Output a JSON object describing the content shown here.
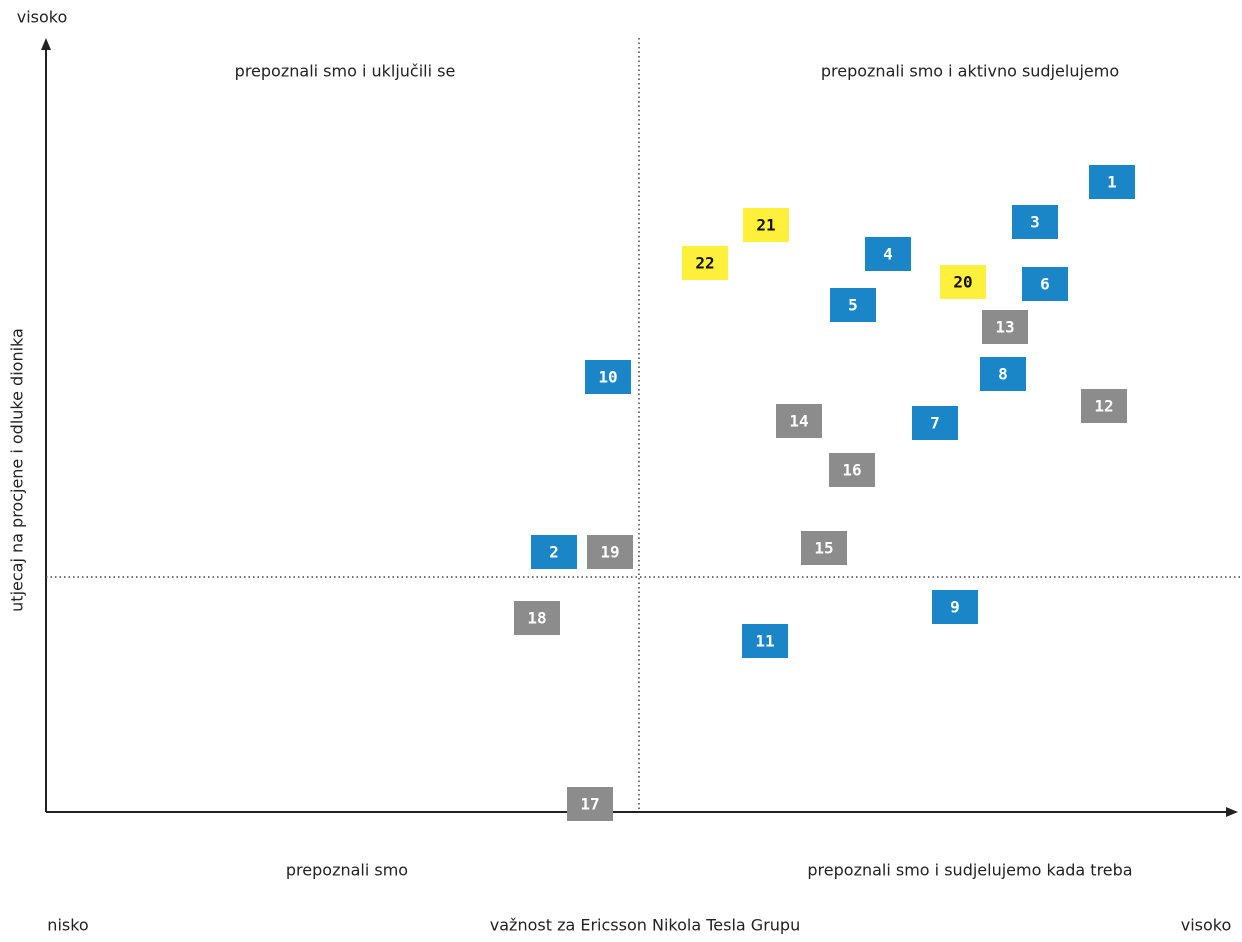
{
  "axes": {
    "y_high": "visoko",
    "y_label": "utjecaj na procjene i odluke dionika",
    "x_low": "nisko",
    "x_label": "važnost za Ericsson Nikola Tesla Grupu",
    "x_high": "visoko"
  },
  "quadrants": [
    "prepoznali smo i uključili se",
    "prepoznali smo i aktivno sudjelujemo",
    "prepoznali smo",
    "prepoznali smo i sudjelujemo kada treba"
  ],
  "items": [
    {
      "label": "1",
      "color": "#1a86c8",
      "text_color": "#ffffff"
    },
    {
      "label": "2",
      "color": "#1a86c8",
      "text_color": "#ffffff"
    },
    {
      "label": "3",
      "color": "#1a86c8",
      "text_color": "#ffffff"
    },
    {
      "label": "4",
      "color": "#1a86c8",
      "text_color": "#ffffff"
    },
    {
      "label": "5",
      "color": "#1a86c8",
      "text_color": "#ffffff"
    },
    {
      "label": "6",
      "color": "#1a86c8",
      "text_color": "#ffffff"
    },
    {
      "label": "7",
      "color": "#1a86c8",
      "text_color": "#ffffff"
    },
    {
      "label": "8",
      "color": "#1a86c8",
      "text_color": "#ffffff"
    },
    {
      "label": "9",
      "color": "#1a86c8",
      "text_color": "#ffffff"
    },
    {
      "label": "10",
      "color": "#1a86c8",
      "text_color": "#ffffff"
    },
    {
      "label": "11",
      "color": "#1a86c8",
      "text_color": "#ffffff"
    },
    {
      "label": "12",
      "color": "#8c8c8c",
      "text_color": "#ffffff"
    },
    {
      "label": "13",
      "color": "#8c8c8c",
      "text_color": "#ffffff"
    },
    {
      "label": "14",
      "color": "#8c8c8c",
      "text_color": "#ffffff"
    },
    {
      "label": "15",
      "color": "#8c8c8c",
      "text_color": "#ffffff"
    },
    {
      "label": "16",
      "color": "#8c8c8c",
      "text_color": "#ffffff"
    },
    {
      "label": "17",
      "color": "#8c8c8c",
      "text_color": "#ffffff"
    },
    {
      "label": "18",
      "color": "#8c8c8c",
      "text_color": "#ffffff"
    },
    {
      "label": "19",
      "color": "#8c8c8c",
      "text_color": "#ffffff"
    },
    {
      "label": "20",
      "color": "#fff03c",
      "text_color": "#111111"
    },
    {
      "label": "21",
      "color": "#fff03c",
      "text_color": "#111111"
    },
    {
      "label": "22",
      "color": "#fff03c",
      "text_color": "#111111"
    }
  ]
}
